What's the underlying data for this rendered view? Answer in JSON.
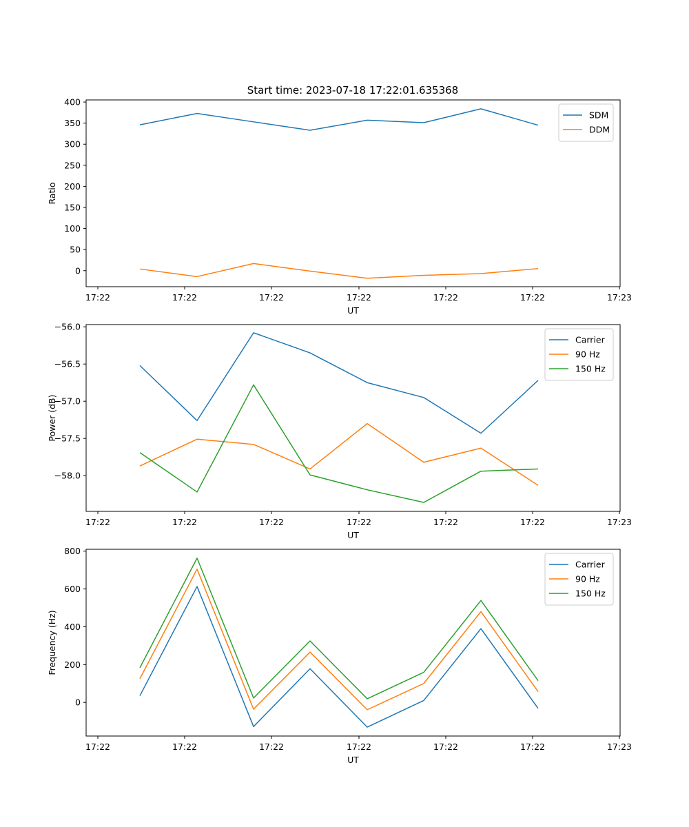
{
  "figure": {
    "title": "Start time: 2023-07-18 17:22:01.635368"
  },
  "colors": {
    "blue": "#1f77b4",
    "orange": "#ff7f0e",
    "green": "#2ca02c"
  },
  "chart_data": [
    {
      "type": "line",
      "xlabel": "UT",
      "ylabel": "Ratio",
      "x_tick_labels": [
        "17:22",
        "17:22",
        "17:22",
        "17:22",
        "17:22",
        "17:22",
        "17:23"
      ],
      "ylim": [
        -38,
        405
      ],
      "yticks": [
        0,
        50,
        100,
        150,
        200,
        250,
        300,
        350,
        400
      ],
      "ytick_labels": [
        "0",
        "50",
        "100",
        "150",
        "200",
        "250",
        "300",
        "350",
        "400"
      ],
      "legend_loc": "upper right",
      "series": [
        {
          "name": "SDM",
          "color": "#1f77b4",
          "values": [
            346,
            373,
            353,
            333,
            357,
            351,
            384,
            345
          ]
        },
        {
          "name": "DDM",
          "color": "#ff7f0e",
          "values": [
            4,
            -14,
            17,
            -1,
            -18,
            -11,
            -7,
            5
          ]
        }
      ]
    },
    {
      "type": "line",
      "xlabel": "UT",
      "ylabel": "Power (dB)",
      "x_tick_labels": [
        "17:22",
        "17:22",
        "17:22",
        "17:22",
        "17:22",
        "17:22",
        "17:23"
      ],
      "ylim": [
        -58.48,
        -55.97
      ],
      "yticks": [
        -58.0,
        -57.5,
        -57.0,
        -56.5,
        -56.0
      ],
      "ytick_labels": [
        "−58.0",
        "−57.5",
        "−57.0",
        "−56.5",
        "−56.0"
      ],
      "legend_loc": "upper right",
      "series": [
        {
          "name": "Carrier",
          "color": "#1f77b4",
          "values": [
            -56.52,
            -57.26,
            -56.08,
            -56.35,
            -56.75,
            -56.95,
            -57.43,
            -56.72
          ]
        },
        {
          "name": "90 Hz",
          "color": "#ff7f0e",
          "values": [
            -57.87,
            -57.51,
            -57.58,
            -57.91,
            -57.3,
            -57.82,
            -57.63,
            -58.13
          ]
        },
        {
          "name": "150 Hz",
          "color": "#2ca02c",
          "values": [
            -57.69,
            -58.22,
            -56.78,
            -57.99,
            -58.19,
            -58.36,
            -57.94,
            -57.91
          ]
        }
      ]
    },
    {
      "type": "line",
      "xlabel": "UT",
      "ylabel": "Frequency (Hz)",
      "x_tick_labels": [
        "17:22",
        "17:22",
        "17:22",
        "17:22",
        "17:22",
        "17:22",
        "17:23"
      ],
      "ylim": [
        -178,
        810
      ],
      "yticks": [
        0,
        200,
        400,
        600,
        800
      ],
      "ytick_labels": [
        "0",
        "200",
        "400",
        "600",
        "800"
      ],
      "legend_loc": "upper right",
      "series": [
        {
          "name": "Carrier",
          "color": "#1f77b4",
          "values": [
            35,
            613,
            -128,
            178,
            -131,
            10,
            390,
            -32
          ]
        },
        {
          "name": "90 Hz",
          "color": "#ff7f0e",
          "values": [
            125,
            705,
            -36,
            266,
            -39,
            100,
            480,
            57
          ]
        },
        {
          "name": "150 Hz",
          "color": "#2ca02c",
          "values": [
            183,
            763,
            23,
            325,
            19,
            159,
            539,
            115
          ]
        }
      ]
    }
  ]
}
